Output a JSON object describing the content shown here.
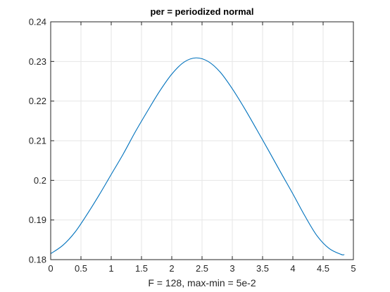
{
  "chart_data": {
    "type": "line",
    "title": "per = periodized normal",
    "xlabel": "F = 128, max-min = 5e-2",
    "ylabel": "",
    "xlim": [
      0,
      5
    ],
    "ylim": [
      0.18,
      0.24
    ],
    "grid": true,
    "legend": "none",
    "xticks": [
      0,
      0.5,
      1,
      1.5,
      2,
      2.5,
      3,
      3.5,
      4,
      4.5,
      5
    ],
    "xtick_labels": [
      "0",
      "0.5",
      "1",
      "1.5",
      "2",
      "2.5",
      "3",
      "3.5",
      "4",
      "4.5",
      "5"
    ],
    "yticks": [
      0.18,
      0.19,
      0.2,
      0.21,
      0.22,
      0.23,
      0.24
    ],
    "ytick_labels": [
      "0.18",
      "0.19",
      "0.2",
      "0.21",
      "0.22",
      "0.23",
      "0.24"
    ],
    "series": [
      {
        "color": "#0072bd",
        "x": [
          0,
          0.2,
          0.4,
          0.6,
          0.8,
          1.0,
          1.2,
          1.4,
          1.6,
          1.8,
          2.0,
          2.2,
          2.4,
          2.6,
          2.8,
          3.0,
          3.2,
          3.4,
          3.6,
          3.8,
          4.0,
          4.2,
          4.4,
          4.6,
          4.8,
          4.85
        ],
        "y": [
          0.1815,
          0.1836,
          0.1869,
          0.1914,
          0.1963,
          0.2015,
          0.2067,
          0.2123,
          0.2175,
          0.2225,
          0.2268,
          0.2298,
          0.2309,
          0.23,
          0.2273,
          0.2231,
          0.2182,
          0.2129,
          0.2075,
          0.202,
          0.1966,
          0.191,
          0.186,
          0.1828,
          0.1813,
          0.1813
        ]
      }
    ]
  }
}
